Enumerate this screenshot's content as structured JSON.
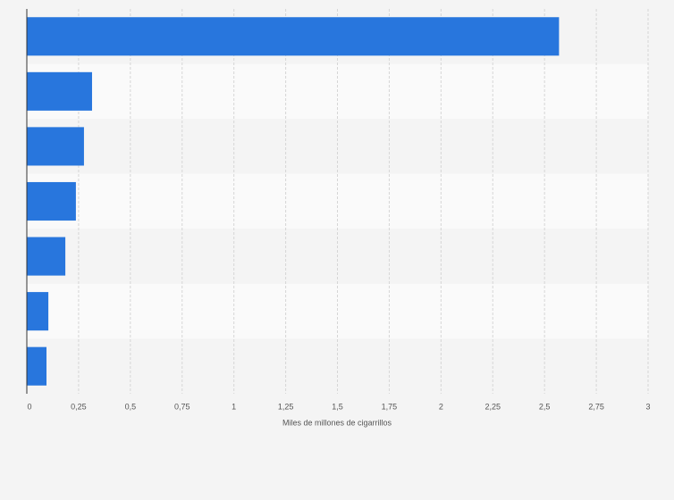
{
  "chart_data": {
    "type": "bar",
    "orientation": "horizontal",
    "x_label": "Miles de millones de cigarrillos",
    "categories": [
      null,
      null,
      null,
      null,
      null,
      null,
      null
    ],
    "values": [
      2.57,
      0.315,
      0.276,
      0.237,
      0.186,
      0.104,
      0.095
    ],
    "color": "#2876dd",
    "xlim": [
      0,
      3
    ],
    "xticks": [
      0,
      {
        "value": 0.25,
        "label": "0,25"
      },
      {
        "value": 0.5,
        "label": "0,5"
      },
      {
        "value": 0.75,
        "label": "0,75"
      },
      1,
      {
        "value": 1.25,
        "label": "1,25"
      },
      {
        "value": 1.5,
        "label": "1,5"
      },
      {
        "value": 1.75,
        "label": "1,75"
      },
      2,
      {
        "value": 2.25,
        "label": "2,25"
      },
      {
        "value": 2.5,
        "label": "2,5"
      },
      {
        "value": 2.75,
        "label": "2,75"
      },
      3
    ],
    "grid": true
  }
}
